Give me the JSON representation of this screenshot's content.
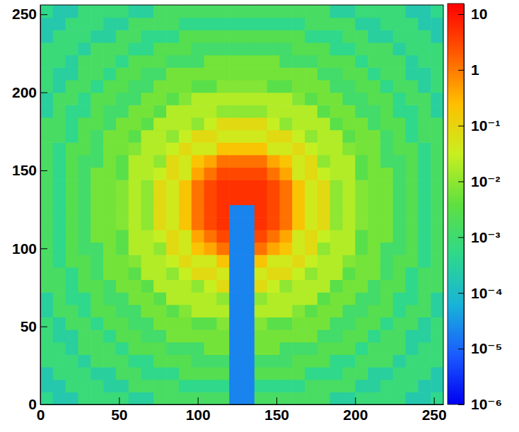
{
  "chart_data": {
    "type": "heatmap",
    "xlim": [
      0,
      256
    ],
    "ylim": [
      0,
      256
    ],
    "xticks": [
      0,
      50,
      100,
      150,
      200,
      250
    ],
    "yticks": [
      0,
      50,
      100,
      150,
      200,
      250
    ],
    "xbins": [
      0,
      8,
      16,
      24,
      32,
      40,
      48,
      56,
      64,
      72,
      80,
      88,
      96,
      104,
      112,
      120,
      128,
      136,
      144,
      152,
      160,
      168,
      176,
      184,
      192,
      200,
      208,
      216,
      224,
      232,
      240,
      248,
      256
    ],
    "ybins": [
      0,
      8,
      16,
      24,
      32,
      40,
      48,
      56,
      64,
      72,
      80,
      88,
      96,
      104,
      112,
      120,
      128,
      136,
      144,
      152,
      160,
      168,
      176,
      184,
      192,
      200,
      208,
      216,
      224,
      232,
      240,
      248,
      256
    ],
    "colorbar": {
      "log": true,
      "range": [
        1e-06,
        15.5
      ],
      "ticks": [
        {
          "value": 1e-06,
          "label": "10⁻⁶"
        },
        {
          "value": 1e-05,
          "label": "10⁻⁵"
        },
        {
          "value": 0.0001,
          "label": "10⁻⁴"
        },
        {
          "value": 0.001,
          "label": "10⁻³"
        },
        {
          "value": 0.01,
          "label": "10⁻²"
        },
        {
          "value": 0.1,
          "label": "10⁻¹"
        },
        1,
        10
      ]
    },
    "z": [
      [
        0.0005,
        0.0002,
        0.0002,
        0.0008,
        0.0008,
        0.0008,
        0.0008,
        0.0003,
        0.0003,
        0.0015,
        0.0015,
        0.0015,
        0.0015,
        0.0015,
        0.0015,
        2e-05,
        2e-05,
        0.0015,
        0.0015,
        0.0015,
        0.0015,
        0.0015,
        0.0015,
        0.0003,
        0.0003,
        0.0008,
        0.0008,
        0.0008,
        0.0008,
        0.0002,
        0.0002,
        0.0005
      ],
      [
        0.0002,
        0.0002,
        0.0008,
        0.0008,
        0.0008,
        0.0003,
        0.0003,
        0.0015,
        0.0015,
        0.0015,
        0.0015,
        0.0005,
        0.0005,
        0.0005,
        0.0005,
        2e-05,
        2e-05,
        0.0005,
        0.0005,
        0.0005,
        0.0005,
        0.0015,
        0.0015,
        0.0015,
        0.0015,
        0.0003,
        0.0003,
        0.0008,
        0.0008,
        0.0008,
        0.0002,
        0.0002
      ],
      [
        0.0002,
        0.0008,
        0.0008,
        0.0008,
        0.0003,
        0.0003,
        0.0015,
        0.0015,
        0.0005,
        0.0005,
        0.0005,
        0.0025,
        0.0025,
        0.0025,
        0.0025,
        2e-05,
        2e-05,
        0.0025,
        0.0025,
        0.0025,
        0.0025,
        0.0005,
        0.0005,
        0.0005,
        0.0015,
        0.0015,
        0.0003,
        0.0003,
        0.0008,
        0.0008,
        0.0008,
        0.0002
      ],
      [
        0.0008,
        0.0008,
        0.0008,
        0.0003,
        0.0015,
        0.0015,
        0.0015,
        0.0005,
        0.0005,
        0.0025,
        0.0025,
        0.0025,
        0.0012,
        0.0012,
        0.0012,
        2e-05,
        2e-05,
        0.0012,
        0.0012,
        0.0012,
        0.0025,
        0.0025,
        0.0025,
        0.0005,
        0.0005,
        0.0015,
        0.0015,
        0.0015,
        0.0003,
        0.0008,
        0.0008,
        0.0008
      ],
      [
        0.0008,
        0.0008,
        0.0003,
        0.0015,
        0.0015,
        0.0015,
        0.0005,
        0.0025,
        0.0025,
        0.0025,
        0.0012,
        0.0012,
        0.0012,
        0.006,
        0.006,
        2e-05,
        2e-05,
        0.006,
        0.006,
        0.0012,
        0.0012,
        0.0012,
        0.0025,
        0.0025,
        0.0025,
        0.0005,
        0.0015,
        0.0015,
        0.0015,
        0.0003,
        0.0008,
        0.0008
      ],
      [
        0.0008,
        0.0003,
        0.0003,
        0.0015,
        0.0015,
        0.0005,
        0.0025,
        0.0025,
        0.0012,
        0.0012,
        0.006,
        0.006,
        0.006,
        0.006,
        0.006,
        2e-05,
        2e-05,
        0.006,
        0.006,
        0.006,
        0.006,
        0.006,
        0.0012,
        0.0012,
        0.0025,
        0.0025,
        0.0005,
        0.0015,
        0.0015,
        0.0003,
        0.0003,
        0.0008
      ],
      [
        0.0008,
        0.0003,
        0.0015,
        0.0015,
        0.0005,
        0.0025,
        0.0025,
        0.0012,
        0.0012,
        0.006,
        0.006,
        0.006,
        0.003,
        0.003,
        0.008,
        2e-05,
        2e-05,
        0.008,
        0.003,
        0.003,
        0.006,
        0.006,
        0.006,
        0.0012,
        0.0012,
        0.0025,
        0.0025,
        0.0005,
        0.0015,
        0.0015,
        0.0003,
        0.0008
      ],
      [
        0.0003,
        0.0015,
        0.0015,
        0.0005,
        0.0025,
        0.0025,
        0.0012,
        0.0012,
        0.006,
        0.006,
        0.003,
        0.008,
        0.02,
        0.02,
        0.02,
        2e-05,
        2e-05,
        0.02,
        0.02,
        0.02,
        0.008,
        0.003,
        0.006,
        0.006,
        0.0012,
        0.0012,
        0.0025,
        0.0025,
        0.0005,
        0.0015,
        0.0015,
        0.0003
      ],
      [
        0.0003,
        0.0015,
        0.0005,
        0.0005,
        0.0025,
        0.0012,
        0.0012,
        0.006,
        0.006,
        0.003,
        0.02,
        0.02,
        0.02,
        0.02,
        0.01,
        2e-05,
        2e-05,
        0.01,
        0.02,
        0.02,
        0.02,
        0.02,
        0.003,
        0.006,
        0.006,
        0.0012,
        0.0012,
        0.0025,
        0.0005,
        0.0005,
        0.0015,
        0.0003
      ],
      [
        0.0015,
        0.0015,
        0.0005,
        0.0025,
        0.0025,
        0.0012,
        0.006,
        0.006,
        0.003,
        0.02,
        0.02,
        0.02,
        0.01,
        0.03,
        0.08,
        2e-05,
        2e-05,
        0.08,
        0.03,
        0.01,
        0.02,
        0.02,
        0.02,
        0.003,
        0.006,
        0.006,
        0.0012,
        0.0025,
        0.0025,
        0.0005,
        0.0015,
        0.0015
      ],
      [
        0.0015,
        0.0015,
        0.0005,
        0.0025,
        0.0012,
        0.006,
        0.006,
        0.003,
        0.02,
        0.02,
        0.01,
        0.03,
        0.08,
        0.08,
        0.04,
        2e-05,
        2e-05,
        0.04,
        0.08,
        0.08,
        0.03,
        0.01,
        0.02,
        0.02,
        0.003,
        0.006,
        0.006,
        0.0012,
        0.0025,
        0.0005,
        0.0015,
        0.0015
      ],
      [
        0.0015,
        0.0005,
        0.0025,
        0.0025,
        0.0012,
        0.006,
        0.006,
        0.008,
        0.02,
        0.02,
        0.03,
        0.08,
        0.04,
        0.04,
        0.2,
        2e-05,
        2e-05,
        0.2,
        0.04,
        0.04,
        0.08,
        0.03,
        0.02,
        0.02,
        0.008,
        0.006,
        0.006,
        0.0012,
        0.0025,
        0.0025,
        0.0005,
        0.0015
      ],
      [
        0.0015,
        0.0005,
        0.0025,
        0.0012,
        0.0012,
        0.006,
        0.003,
        0.02,
        0.02,
        0.01,
        0.08,
        0.04,
        0.2,
        0.4,
        1.2,
        2e-05,
        2e-05,
        1.2,
        0.4,
        0.2,
        0.04,
        0.08,
        0.01,
        0.02,
        0.02,
        0.003,
        0.006,
        0.0012,
        0.0012,
        0.0025,
        0.0005,
        0.0015
      ],
      [
        0.0015,
        0.0005,
        0.0025,
        0.0012,
        0.006,
        0.006,
        0.003,
        0.02,
        0.02,
        0.03,
        0.08,
        0.04,
        0.4,
        1.2,
        3,
        2e-05,
        2e-05,
        3,
        1.2,
        0.4,
        0.04,
        0.08,
        0.03,
        0.02,
        0.02,
        0.003,
        0.006,
        0.006,
        0.0012,
        0.0025,
        0.0005,
        0.0015
      ],
      [
        0.0015,
        0.0005,
        0.0025,
        0.0012,
        0.006,
        0.006,
        0.008,
        0.02,
        0.01,
        0.08,
        0.04,
        0.2,
        1.2,
        3,
        5,
        2e-05,
        2e-05,
        5,
        3,
        1.2,
        0.2,
        0.04,
        0.08,
        0.01,
        0.02,
        0.008,
        0.006,
        0.006,
        0.0012,
        0.0025,
        0.0005,
        0.0015
      ],
      [
        0.0015,
        0.0005,
        0.0025,
        0.0012,
        0.006,
        0.006,
        0.008,
        0.02,
        0.01,
        0.08,
        0.04,
        0.2,
        1.2,
        3,
        5,
        2e-05,
        2e-05,
        5,
        3,
        1.2,
        0.2,
        0.04,
        0.08,
        0.01,
        0.02,
        0.008,
        0.006,
        0.006,
        0.0012,
        0.0025,
        0.0005,
        0.0015
      ],
      [
        0.0015,
        0.0005,
        0.0025,
        0.0012,
        0.006,
        0.006,
        0.008,
        0.02,
        0.01,
        0.08,
        0.04,
        0.2,
        1.2,
        3,
        5,
        5,
        5,
        5,
        3,
        1.2,
        0.2,
        0.04,
        0.08,
        0.01,
        0.02,
        0.008,
        0.006,
        0.006,
        0.0012,
        0.0025,
        0.0005,
        0.0015
      ],
      [
        0.0015,
        0.0005,
        0.0025,
        0.0012,
        0.006,
        0.006,
        0.008,
        0.02,
        0.01,
        0.08,
        0.04,
        0.2,
        1.2,
        3,
        5,
        5,
        5,
        5,
        3,
        1.2,
        0.2,
        0.04,
        0.08,
        0.01,
        0.02,
        0.008,
        0.006,
        0.006,
        0.0012,
        0.0025,
        0.0005,
        0.0015
      ],
      [
        0.0015,
        0.0005,
        0.0025,
        0.0012,
        0.006,
        0.006,
        0.003,
        0.02,
        0.02,
        0.03,
        0.08,
        0.04,
        0.4,
        1.2,
        3,
        3,
        3,
        3,
        1.2,
        0.4,
        0.04,
        0.08,
        0.03,
        0.02,
        0.02,
        0.003,
        0.006,
        0.006,
        0.0012,
        0.0025,
        0.0005,
        0.0015
      ],
      [
        0.0015,
        0.0005,
        0.0025,
        0.0012,
        0.0012,
        0.006,
        0.003,
        0.02,
        0.02,
        0.01,
        0.08,
        0.04,
        0.2,
        0.4,
        1.2,
        1.2,
        1.2,
        1.2,
        0.4,
        0.2,
        0.04,
        0.08,
        0.01,
        0.02,
        0.02,
        0.003,
        0.006,
        0.0012,
        0.0012,
        0.0025,
        0.0005,
        0.0015
      ],
      [
        0.0015,
        0.0005,
        0.0025,
        0.0025,
        0.0012,
        0.006,
        0.006,
        0.008,
        0.02,
        0.02,
        0.03,
        0.08,
        0.04,
        0.04,
        0.2,
        0.2,
        0.2,
        0.2,
        0.04,
        0.04,
        0.08,
        0.03,
        0.02,
        0.02,
        0.008,
        0.006,
        0.006,
        0.0012,
        0.0025,
        0.0025,
        0.0005,
        0.0015
      ],
      [
        0.0015,
        0.0015,
        0.0005,
        0.0025,
        0.0012,
        0.006,
        0.006,
        0.003,
        0.02,
        0.02,
        0.01,
        0.03,
        0.08,
        0.08,
        0.04,
        0.04,
        0.04,
        0.04,
        0.08,
        0.08,
        0.03,
        0.01,
        0.02,
        0.02,
        0.003,
        0.006,
        0.006,
        0.0012,
        0.0025,
        0.0005,
        0.0015,
        0.0015
      ],
      [
        0.0015,
        0.0015,
        0.0005,
        0.0025,
        0.0025,
        0.0012,
        0.006,
        0.006,
        0.003,
        0.02,
        0.02,
        0.02,
        0.01,
        0.03,
        0.08,
        0.08,
        0.08,
        0.08,
        0.03,
        0.01,
        0.02,
        0.02,
        0.02,
        0.003,
        0.006,
        0.006,
        0.0012,
        0.0025,
        0.0025,
        0.0005,
        0.0015,
        0.0015
      ],
      [
        0.0003,
        0.0015,
        0.0005,
        0.0005,
        0.0025,
        0.0012,
        0.0012,
        0.006,
        0.006,
        0.003,
        0.02,
        0.02,
        0.02,
        0.02,
        0.01,
        0.01,
        0.01,
        0.01,
        0.02,
        0.02,
        0.02,
        0.02,
        0.003,
        0.006,
        0.006,
        0.0012,
        0.0012,
        0.0025,
        0.0005,
        0.0005,
        0.0015,
        0.0003
      ],
      [
        0.0003,
        0.0015,
        0.0015,
        0.0005,
        0.0025,
        0.0025,
        0.0012,
        0.0012,
        0.006,
        0.006,
        0.003,
        0.008,
        0.02,
        0.02,
        0.02,
        0.02,
        0.02,
        0.02,
        0.02,
        0.02,
        0.008,
        0.003,
        0.006,
        0.006,
        0.0012,
        0.0012,
        0.0025,
        0.0025,
        0.0005,
        0.0015,
        0.0015,
        0.0003
      ],
      [
        0.0008,
        0.0003,
        0.0015,
        0.0015,
        0.0005,
        0.0025,
        0.0025,
        0.0012,
        0.0012,
        0.006,
        0.006,
        0.006,
        0.003,
        0.003,
        0.008,
        0.008,
        0.008,
        0.008,
        0.003,
        0.003,
        0.006,
        0.006,
        0.006,
        0.0012,
        0.0012,
        0.0025,
        0.0025,
        0.0005,
        0.0015,
        0.0015,
        0.0003,
        0.0008
      ],
      [
        0.0008,
        0.0003,
        0.0003,
        0.0015,
        0.0015,
        0.0005,
        0.0025,
        0.0025,
        0.0012,
        0.0012,
        0.006,
        0.006,
        0.006,
        0.006,
        0.006,
        0.006,
        0.006,
        0.006,
        0.006,
        0.006,
        0.006,
        0.006,
        0.0012,
        0.0012,
        0.0025,
        0.0025,
        0.0005,
        0.0015,
        0.0015,
        0.0003,
        0.0003,
        0.0008
      ],
      [
        0.0008,
        0.0008,
        0.0003,
        0.0015,
        0.0015,
        0.0015,
        0.0005,
        0.0025,
        0.0025,
        0.0025,
        0.0012,
        0.0012,
        0.0012,
        0.006,
        0.006,
        0.006,
        0.006,
        0.006,
        0.006,
        0.0012,
        0.0012,
        0.0012,
        0.0025,
        0.0025,
        0.0025,
        0.0005,
        0.0015,
        0.0015,
        0.0015,
        0.0003,
        0.0008,
        0.0008
      ],
      [
        0.0008,
        0.0008,
        0.0008,
        0.0003,
        0.0015,
        0.0015,
        0.0015,
        0.0005,
        0.0005,
        0.0025,
        0.0025,
        0.0025,
        0.0012,
        0.0012,
        0.0012,
        0.0012,
        0.0012,
        0.0012,
        0.0012,
        0.0012,
        0.0025,
        0.0025,
        0.0025,
        0.0005,
        0.0005,
        0.0015,
        0.0015,
        0.0015,
        0.0003,
        0.0008,
        0.0008,
        0.0008
      ],
      [
        0.0002,
        0.0008,
        0.0008,
        0.0008,
        0.0003,
        0.0003,
        0.0015,
        0.0015,
        0.0005,
        0.0005,
        0.0005,
        0.0025,
        0.0025,
        0.0025,
        0.0025,
        0.0025,
        0.0025,
        0.0025,
        0.0025,
        0.0025,
        0.0025,
        0.0005,
        0.0005,
        0.0005,
        0.0015,
        0.0015,
        0.0003,
        0.0003,
        0.0008,
        0.0008,
        0.0008,
        0.0002
      ],
      [
        0.0002,
        0.0002,
        0.0008,
        0.0008,
        0.0008,
        0.0003,
        0.0003,
        0.0015,
        0.0015,
        0.0015,
        0.0015,
        0.0005,
        0.0005,
        0.0005,
        0.0005,
        0.0005,
        0.0005,
        0.0005,
        0.0005,
        0.0005,
        0.0005,
        0.0015,
        0.0015,
        0.0015,
        0.0015,
        0.0003,
        0.0003,
        0.0008,
        0.0008,
        0.0008,
        0.0002,
        0.0002
      ],
      [
        0.0005,
        0.0002,
        0.0002,
        0.0008,
        0.0008,
        0.0008,
        0.0008,
        0.0003,
        0.0003,
        0.0015,
        0.0015,
        0.0015,
        0.0015,
        0.0015,
        0.0015,
        0.0015,
        0.0015,
        0.0015,
        0.0015,
        0.0015,
        0.0015,
        0.0015,
        0.0015,
        0.0003,
        0.0003,
        0.0008,
        0.0008,
        0.0008,
        0.0008,
        0.0002,
        0.0002,
        0.0005
      ]
    ]
  }
}
